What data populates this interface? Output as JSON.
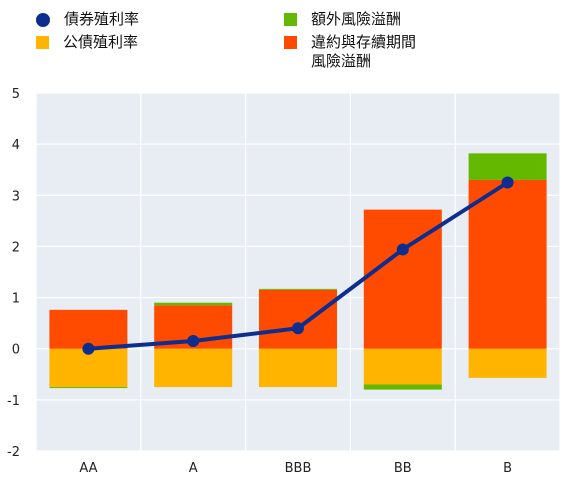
{
  "chart_data": {
    "type": "bar",
    "categories": [
      "AA",
      "A",
      "BBB",
      "BB",
      "B"
    ],
    "series": [
      {
        "name": "公債殖利率",
        "kind": "bar",
        "values": [
          -0.75,
          -0.75,
          -0.75,
          -0.7,
          -0.57
        ]
      },
      {
        "name": "違約與存續期間\n風險溢酬",
        "kind": "bar",
        "values": [
          0.76,
          0.85,
          1.15,
          2.72,
          3.3
        ]
      },
      {
        "name": "額外風險溢酬",
        "kind": "bar",
        "values": [
          -0.02,
          0.05,
          0.02,
          -0.1,
          0.52
        ]
      },
      {
        "name": "債券殖利率",
        "kind": "line",
        "values": [
          0.0,
          0.15,
          0.4,
          1.94,
          3.25
        ]
      }
    ],
    "yticks": [
      5,
      4,
      3,
      2,
      1,
      0,
      -1,
      -2
    ],
    "ylim": [
      -2,
      5
    ],
    "grid": true,
    "legend_position": "top"
  },
  "legend": [
    {
      "label": "債券殖利率",
      "color": "#0d2e8f",
      "shape": "dot"
    },
    {
      "label": "公債殖利率",
      "color": "#ffb400",
      "shape": "square"
    },
    {
      "label": "額外風險溢酬",
      "color": "#65b800",
      "shape": "square"
    },
    {
      "label": "違約與存續期間\n風險溢酬",
      "color": "#ff4b00",
      "shape": "square"
    }
  ],
  "colors": {
    "plot_background": "#e8edf4",
    "grid": "#ffffff",
    "line": "#0d2e8f"
  }
}
